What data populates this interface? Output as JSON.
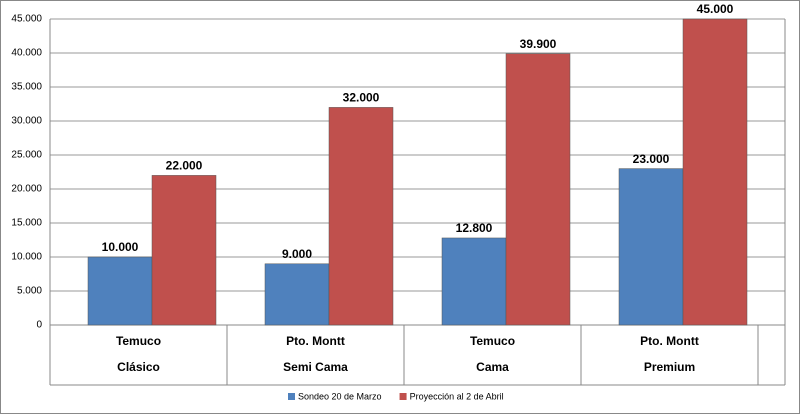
{
  "chart_data": {
    "type": "bar",
    "categories": [
      "Temuco",
      "Pto. Montt",
      "Temuco",
      "Pto. Montt"
    ],
    "groups": [
      "Clásico",
      "Semi Cama",
      "Cama",
      "Premium"
    ],
    "series": [
      {
        "name": "Sondeo 20 de Marzo",
        "color": "#4f81bd",
        "values": [
          10000,
          9000,
          12800,
          23000
        ],
        "value_labels": [
          "10.000",
          "9.000",
          "12.800",
          "23.000"
        ]
      },
      {
        "name": "Proyección al 2 de Abril",
        "color": "#c0504d",
        "values": [
          22000,
          32000,
          39900,
          45000
        ],
        "value_labels": [
          "22.000",
          "32.000",
          "39.900",
          "45.000"
        ]
      }
    ],
    "ylim": [
      0,
      45000
    ],
    "yticks": [
      0,
      {
        "value": 5000,
        "label": "5.000"
      },
      {
        "value": 10000,
        "label": "10.000"
      },
      {
        "value": 15000,
        "label": "15.000"
      },
      {
        "value": 20000,
        "label": "20.000"
      },
      {
        "value": 25000,
        "label": "25.000"
      },
      {
        "value": 30000,
        "label": "30.000"
      },
      {
        "value": 35000,
        "label": "35.000"
      },
      {
        "value": 40000,
        "label": "40.000"
      },
      {
        "value": 45000,
        "label": "45.000"
      }
    ],
    "grid": true
  }
}
